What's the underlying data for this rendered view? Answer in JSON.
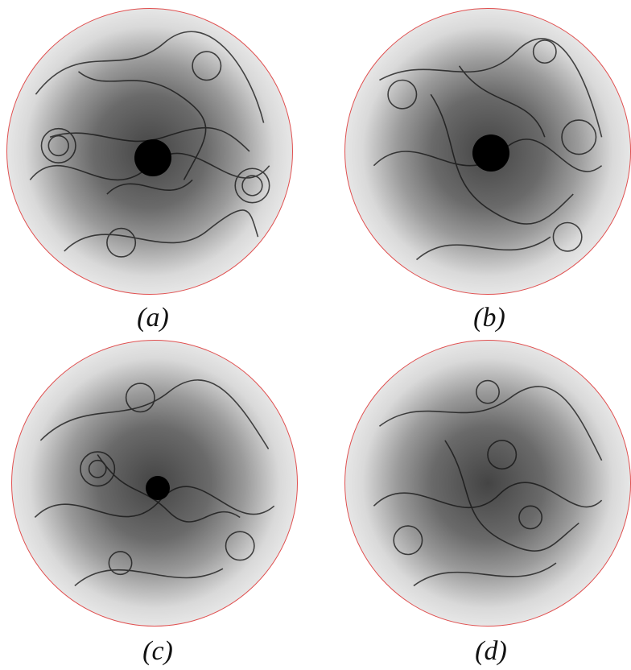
{
  "panels": [
    {
      "caption": "(a)"
    },
    {
      "caption": "(b)"
    },
    {
      "caption": "(c)"
    },
    {
      "caption": "(d)"
    }
  ],
  "colors": {
    "rim": "#e05050",
    "ink": "#111111"
  }
}
